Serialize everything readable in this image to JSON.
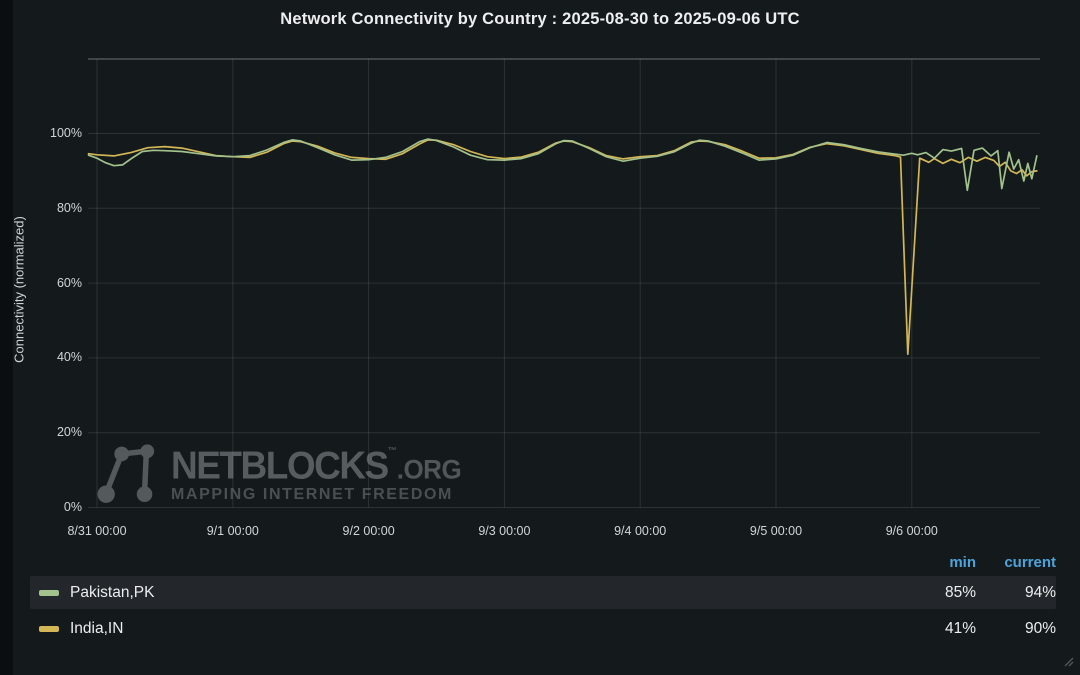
{
  "panel": {
    "title": "Network Connectivity by Country : 2025-08-30 to 2025-09-06 UTC"
  },
  "watermark": {
    "brand": "NETBLOCKS",
    "brand_mark": "™",
    "domain": ".ORG",
    "tagline": "MAPPING INTERNET FREEDOM",
    "logo_icon": "network-nodes-icon"
  },
  "legend": {
    "columns": [
      "min",
      "current"
    ],
    "header_color": "#4da3dc",
    "rows": [
      {
        "label": "Pakistan,PK",
        "min": "85%",
        "current": "94%",
        "color": "#a2c18c"
      },
      {
        "label": "India,IN",
        "min": "41%",
        "current": "90%",
        "color": "#d3b655"
      }
    ]
  },
  "chart_data": {
    "type": "line",
    "title": "Network Connectivity by Country : 2025-08-30 to 2025-09-06 UTC",
    "xlabel": "",
    "ylabel": "Connectivity (normalized)",
    "ylim": [
      0,
      100
    ],
    "grid": true,
    "legend_position": "bottom-table",
    "x_unit": "hours since 8/31 00:00 UTC",
    "y_ticks": [
      {
        "label": "0%",
        "value": 0
      },
      {
        "label": "20%",
        "value": 20
      },
      {
        "label": "40%",
        "value": 40
      },
      {
        "label": "60%",
        "value": 60
      },
      {
        "label": "80%",
        "value": 80
      },
      {
        "label": "100%",
        "value": 100
      }
    ],
    "x_ticks": [
      {
        "label": "8/31 00:00",
        "hour": 0
      },
      {
        "label": "9/1 00:00",
        "hour": 24
      },
      {
        "label": "9/2 00:00",
        "hour": 48
      },
      {
        "label": "9/3 00:00",
        "hour": 72
      },
      {
        "label": "9/4 00:00",
        "hour": 96
      },
      {
        "label": "9/5 00:00",
        "hour": 120
      },
      {
        "label": "9/6 00:00",
        "hour": 144
      }
    ],
    "series": [
      {
        "name": "Pakistan,PK",
        "color": "#a2c18c",
        "min": "85%",
        "current": "94%",
        "points": [
          [
            -1.5,
            94.2
          ],
          [
            0,
            93.4
          ],
          [
            1.5,
            92.2
          ],
          [
            3,
            91.4
          ],
          [
            4.5,
            91.6
          ],
          [
            6,
            93.2
          ],
          [
            8,
            95.2
          ],
          [
            10,
            95.5
          ],
          [
            12,
            95.4
          ],
          [
            15,
            95.2
          ],
          [
            18,
            94.6
          ],
          [
            21,
            94.0
          ],
          [
            24,
            93.8
          ],
          [
            27,
            94.1
          ],
          [
            30,
            95.6
          ],
          [
            33,
            97.6
          ],
          [
            34.5,
            98.3
          ],
          [
            36,
            98.0
          ],
          [
            39,
            96.2
          ],
          [
            42,
            94.3
          ],
          [
            45,
            92.9
          ],
          [
            48,
            93.0
          ],
          [
            51,
            93.6
          ],
          [
            54,
            95.2
          ],
          [
            57,
            97.8
          ],
          [
            58.5,
            98.5
          ],
          [
            60,
            98.1
          ],
          [
            63,
            96.4
          ],
          [
            66,
            94.2
          ],
          [
            69,
            93.0
          ],
          [
            72,
            92.9
          ],
          [
            75,
            93.3
          ],
          [
            78,
            94.6
          ],
          [
            81,
            97.2
          ],
          [
            82.5,
            98.1
          ],
          [
            84,
            98.0
          ],
          [
            87,
            96.0
          ],
          [
            90,
            93.8
          ],
          [
            93,
            92.6
          ],
          [
            96,
            93.4
          ],
          [
            99,
            93.9
          ],
          [
            102,
            95.1
          ],
          [
            105,
            97.4
          ],
          [
            106.5,
            98.2
          ],
          [
            108,
            98.0
          ],
          [
            111,
            96.6
          ],
          [
            114,
            94.8
          ],
          [
            117,
            92.9
          ],
          [
            120,
            93.2
          ],
          [
            123,
            94.2
          ],
          [
            126,
            96.2
          ],
          [
            129,
            97.6
          ],
          [
            132,
            97.0
          ],
          [
            135,
            96.0
          ],
          [
            138,
            95.1
          ],
          [
            141,
            94.5
          ],
          [
            142.5,
            94.2
          ],
          [
            144,
            94.7
          ],
          [
            145,
            94.3
          ],
          [
            146.5,
            94.9
          ],
          [
            148,
            93.4
          ],
          [
            149.5,
            95.7
          ],
          [
            151,
            95.3
          ],
          [
            152.8,
            96.0
          ],
          [
            153.8,
            84.8
          ],
          [
            155,
            95.5
          ],
          [
            156.5,
            96.1
          ],
          [
            158,
            94.0
          ],
          [
            159.2,
            95.4
          ],
          [
            159.9,
            85.3
          ],
          [
            161.2,
            95.0
          ],
          [
            162,
            90.5
          ],
          [
            162.9,
            93.0
          ],
          [
            163.8,
            87.3
          ],
          [
            164.5,
            92.0
          ],
          [
            165.2,
            87.9
          ],
          [
            166.1,
            94.0
          ]
        ]
      },
      {
        "name": "India,IN",
        "color": "#d3b655",
        "min": "41%",
        "current": "90%",
        "points": [
          [
            -1.5,
            94.6
          ],
          [
            0,
            94.3
          ],
          [
            3,
            94.0
          ],
          [
            6,
            94.9
          ],
          [
            9,
            96.2
          ],
          [
            12,
            96.5
          ],
          [
            15,
            96.1
          ],
          [
            18,
            95.1
          ],
          [
            21,
            94.1
          ],
          [
            24,
            93.8
          ],
          [
            27,
            93.6
          ],
          [
            30,
            95.0
          ],
          [
            33,
            97.3
          ],
          [
            34.5,
            98.0
          ],
          [
            36,
            97.8
          ],
          [
            39,
            96.6
          ],
          [
            42,
            94.8
          ],
          [
            45,
            93.6
          ],
          [
            48,
            93.3
          ],
          [
            51,
            93.1
          ],
          [
            54,
            94.6
          ],
          [
            57,
            97.2
          ],
          [
            58.5,
            98.3
          ],
          [
            60,
            98.2
          ],
          [
            63,
            97.0
          ],
          [
            66,
            95.2
          ],
          [
            69,
            93.8
          ],
          [
            72,
            93.3
          ],
          [
            75,
            93.7
          ],
          [
            78,
            95.0
          ],
          [
            81,
            97.4
          ],
          [
            82.5,
            98.0
          ],
          [
            84,
            97.8
          ],
          [
            87,
            96.2
          ],
          [
            90,
            94.1
          ],
          [
            93,
            93.2
          ],
          [
            96,
            93.8
          ],
          [
            99,
            94.1
          ],
          [
            102,
            95.4
          ],
          [
            105,
            97.7
          ],
          [
            106.5,
            98.0
          ],
          [
            108,
            97.9
          ],
          [
            111,
            97.0
          ],
          [
            114,
            95.3
          ],
          [
            117,
            93.4
          ],
          [
            120,
            93.5
          ],
          [
            123,
            94.4
          ],
          [
            126,
            96.3
          ],
          [
            129,
            97.3
          ],
          [
            132,
            96.7
          ],
          [
            135,
            95.7
          ],
          [
            138,
            94.7
          ],
          [
            141,
            94.1
          ],
          [
            142,
            93.7
          ],
          [
            143.3,
            41.0
          ],
          [
            145.4,
            93.4
          ],
          [
            147,
            92.3
          ],
          [
            148,
            93.3
          ],
          [
            149.5,
            92.0
          ],
          [
            151,
            93.1
          ],
          [
            152.5,
            92.2
          ],
          [
            154,
            93.6
          ],
          [
            155.5,
            92.6
          ],
          [
            157,
            93.6
          ],
          [
            158.5,
            92.8
          ],
          [
            159.5,
            91.2
          ],
          [
            160.5,
            92.3
          ],
          [
            161.5,
            90.0
          ],
          [
            162.5,
            89.3
          ],
          [
            163.5,
            90.3
          ],
          [
            164.3,
            88.7
          ],
          [
            165.2,
            89.8
          ],
          [
            166.1,
            90.0
          ]
        ]
      }
    ]
  }
}
